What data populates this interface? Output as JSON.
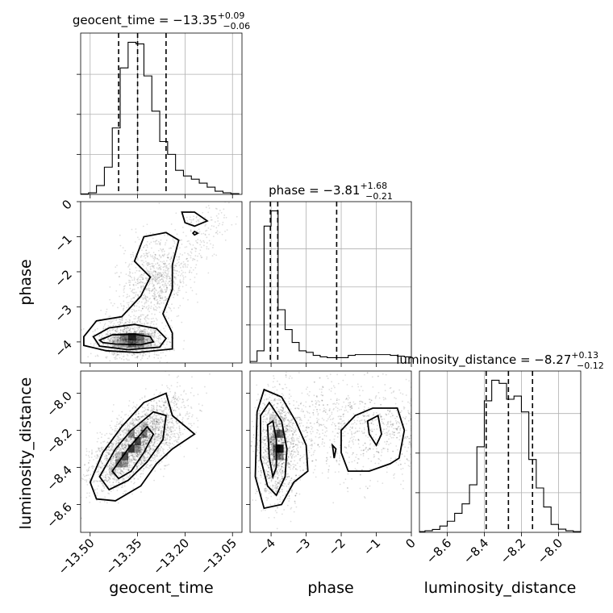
{
  "chart_data": {
    "type": "corner",
    "parameters": [
      "geocent_time",
      "phase",
      "luminosity_distance"
    ],
    "axis_labels": {
      "geocent_time": "geocent_time",
      "phase": "phase",
      "luminosity_distance": "luminosity_distance"
    },
    "titles": [
      {
        "param": "geocent_time",
        "prefix": "geocent_time = −13.35",
        "plus": "+0.09",
        "minus": "−0.06"
      },
      {
        "param": "phase",
        "prefix": "phase = −3.81",
        "plus": "+1.68",
        "minus": "−0.21"
      },
      {
        "param": "luminosity_distance",
        "prefix": "luminosity_distance = −8.27",
        "plus": "+0.13",
        "minus": "−0.12"
      }
    ],
    "ranges": {
      "geocent_time": [
        -13.53,
        -13.02
      ],
      "phase": [
        -4.6,
        0.0
      ],
      "luminosity_distance": [
        -8.75,
        -7.88
      ]
    },
    "ticks": {
      "geocent_time": {
        "values": [
          -13.5,
          -13.35,
          -13.2,
          -13.05
        ],
        "labels": [
          "−13.50",
          "−13.35",
          "−13.20",
          "−13.05"
        ]
      },
      "phase": {
        "values": [
          -4,
          -3,
          -2,
          -1,
          0
        ],
        "labels": [
          "−4",
          "−3",
          "−2",
          "−1",
          "0"
        ]
      },
      "luminosity_distance": {
        "values": [
          -8.6,
          -8.4,
          -8.2,
          -8.0
        ],
        "labels": [
          "−8.6",
          "−8.4",
          "−8.2",
          "−8.0"
        ]
      }
    },
    "quantiles": {
      "geocent_time": [
        -13.41,
        -13.35,
        -13.26
      ],
      "phase": [
        -4.02,
        -3.81,
        -2.13
      ],
      "luminosity_distance": [
        -8.39,
        -8.27,
        -8.14
      ]
    },
    "histograms": {
      "geocent_time": {
        "edges": [
          -13.53,
          -13.505,
          -13.48,
          -13.455,
          -13.43,
          -13.405,
          -13.38,
          -13.355,
          -13.33,
          -13.305,
          -13.28,
          -13.255,
          -13.23,
          -13.205,
          -13.18,
          -13.155,
          -13.13,
          -13.105,
          -13.08,
          -13.055,
          -13.03
        ],
        "counts": [
          3,
          10,
          55,
          170,
          415,
          790,
          950,
          940,
          740,
          520,
          330,
          250,
          150,
          115,
          95,
          70,
          45,
          20,
          10,
          5
        ]
      },
      "phase": {
        "edges": [
          -4.6,
          -4.4,
          -4.2,
          -4.0,
          -3.8,
          -3.6,
          -3.4,
          -3.2,
          -3.0,
          -2.8,
          -2.6,
          -2.4,
          -2.2,
          -2.0,
          -1.8,
          -1.6,
          -1.4,
          -1.2,
          -1.0,
          -0.8,
          -0.6,
          -0.4,
          -0.2,
          0.0
        ],
        "counts": [
          10,
          80,
          900,
          1000,
          350,
          220,
          135,
          80,
          70,
          50,
          40,
          35,
          35,
          35,
          50,
          55,
          55,
          55,
          55,
          55,
          50,
          45,
          40
        ]
      },
      "luminosity_distance": {
        "edges": [
          -8.76,
          -8.72,
          -8.68,
          -8.64,
          -8.6,
          -8.56,
          -8.52,
          -8.48,
          -8.44,
          -8.4,
          -8.36,
          -8.32,
          -8.28,
          -8.24,
          -8.2,
          -8.16,
          -8.12,
          -8.08,
          -8.04,
          -8.0,
          -7.96,
          -7.92,
          -7.88
        ],
        "counts": [
          5,
          10,
          18,
          40,
          70,
          120,
          180,
          300,
          540,
          830,
          960,
          940,
          840,
          860,
          760,
          460,
          280,
          160,
          50,
          20,
          10,
          5
        ]
      }
    },
    "densities": [
      {
        "x": "geocent_time",
        "y": "phase",
        "peak": [
          -13.36,
          -3.95
        ]
      },
      {
        "x": "geocent_time",
        "y": "luminosity_distance",
        "peak": [
          -13.36,
          -8.28
        ]
      },
      {
        "x": "phase",
        "y": "luminosity_distance",
        "peak": [
          -3.85,
          -8.3
        ]
      }
    ],
    "grid": true
  }
}
